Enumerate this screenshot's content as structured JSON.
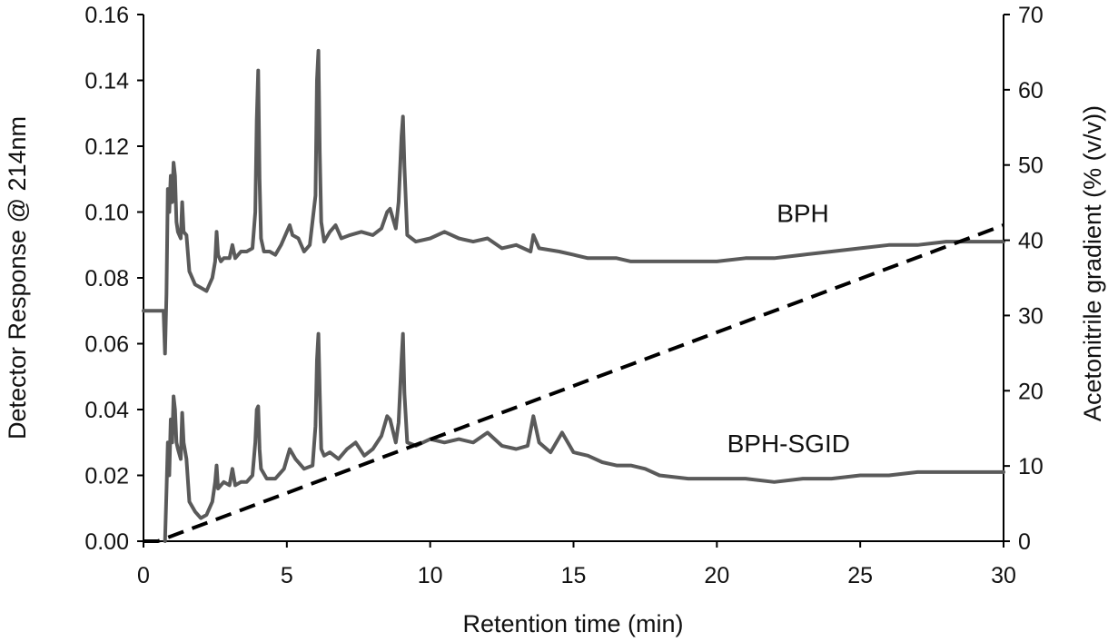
{
  "chart_data": {
    "type": "line",
    "xlabel": "Retention time (min)",
    "ylabel": "Detector Response @ 214nm",
    "y2label": "Acetonitrile gradient (% (v/v))",
    "xlim": [
      0,
      30
    ],
    "ylim": [
      0,
      0.16
    ],
    "y2lim": [
      0,
      70
    ],
    "xticks": [
      "0",
      "5",
      "10",
      "15",
      "20",
      "25",
      "30"
    ],
    "yticks": [
      "0.00",
      "0.02",
      "0.04",
      "0.06",
      "0.08",
      "0.10",
      "0.12",
      "0.14",
      "0.16"
    ],
    "y2ticks": [
      "0",
      "10",
      "20",
      "30",
      "40",
      "50",
      "60",
      "70"
    ],
    "grid": false,
    "legend": "none",
    "colors": {
      "trace": "#5a5a5a",
      "gradient": "#000000"
    },
    "series": [
      {
        "name": "BPH",
        "axis": "left",
        "style": "solid",
        "x": [
          0,
          0.7,
          0.72,
          0.75,
          0.8,
          0.85,
          0.9,
          0.95,
          1.0,
          1.05,
          1.1,
          1.15,
          1.2,
          1.3,
          1.35,
          1.4,
          1.5,
          1.6,
          1.8,
          2.0,
          2.2,
          2.4,
          2.5,
          2.55,
          2.6,
          2.7,
          2.8,
          3.0,
          3.1,
          3.2,
          3.4,
          3.6,
          3.8,
          3.9,
          3.95,
          4.0,
          4.05,
          4.1,
          4.2,
          4.4,
          4.6,
          4.8,
          5.0,
          5.1,
          5.2,
          5.4,
          5.6,
          5.8,
          6.0,
          6.05,
          6.1,
          6.15,
          6.2,
          6.3,
          6.5,
          6.7,
          6.9,
          7.2,
          7.6,
          8.0,
          8.3,
          8.5,
          8.6,
          8.8,
          8.9,
          9.0,
          9.05,
          9.1,
          9.2,
          9.5,
          10.0,
          10.5,
          11.0,
          11.5,
          12.0,
          12.5,
          13.0,
          13.5,
          13.6,
          13.8,
          14.5,
          15.0,
          15.5,
          16.0,
          16.5,
          17.0,
          17.5,
          18.0,
          19.0,
          20.0,
          21.0,
          22.0,
          23.0,
          24.0,
          25.0,
          26.0,
          27.0,
          28.0,
          29.0,
          30.0
        ],
        "values": [
          0.07,
          0.07,
          0.065,
          0.057,
          0.075,
          0.107,
          0.1,
          0.111,
          0.103,
          0.115,
          0.111,
          0.097,
          0.094,
          0.092,
          0.103,
          0.094,
          0.093,
          0.082,
          0.078,
          0.077,
          0.076,
          0.08,
          0.085,
          0.094,
          0.087,
          0.085,
          0.086,
          0.086,
          0.09,
          0.086,
          0.088,
          0.088,
          0.089,
          0.1,
          0.128,
          0.143,
          0.11,
          0.092,
          0.088,
          0.088,
          0.087,
          0.09,
          0.094,
          0.096,
          0.093,
          0.092,
          0.088,
          0.09,
          0.105,
          0.14,
          0.149,
          0.118,
          0.097,
          0.091,
          0.094,
          0.096,
          0.092,
          0.093,
          0.094,
          0.093,
          0.095,
          0.1,
          0.101,
          0.095,
          0.103,
          0.123,
          0.129,
          0.114,
          0.093,
          0.091,
          0.092,
          0.094,
          0.092,
          0.091,
          0.092,
          0.089,
          0.09,
          0.088,
          0.093,
          0.089,
          0.088,
          0.087,
          0.086,
          0.086,
          0.086,
          0.085,
          0.085,
          0.085,
          0.085,
          0.085,
          0.086,
          0.086,
          0.087,
          0.088,
          0.089,
          0.09,
          0.09,
          0.091,
          0.091,
          0.091
        ]
      },
      {
        "name": "BPH-SGID",
        "axis": "left",
        "style": "solid",
        "x": [
          0.75,
          0.8,
          0.85,
          0.9,
          0.95,
          1.0,
          1.05,
          1.1,
          1.15,
          1.2,
          1.3,
          1.35,
          1.4,
          1.5,
          1.6,
          1.8,
          2.0,
          2.2,
          2.4,
          2.5,
          2.55,
          2.6,
          2.8,
          3.0,
          3.1,
          3.2,
          3.4,
          3.6,
          3.8,
          3.9,
          3.95,
          4.0,
          4.05,
          4.1,
          4.3,
          4.6,
          4.9,
          5.1,
          5.3,
          5.6,
          5.9,
          6.0,
          6.05,
          6.1,
          6.15,
          6.2,
          6.3,
          6.5,
          6.8,
          7.1,
          7.4,
          7.7,
          8.0,
          8.3,
          8.5,
          8.6,
          8.8,
          8.9,
          9.0,
          9.05,
          9.1,
          9.2,
          9.5,
          10.0,
          10.5,
          11.0,
          11.5,
          12.0,
          12.5,
          13.0,
          13.4,
          13.6,
          13.8,
          14.2,
          14.6,
          15.0,
          15.5,
          16.0,
          16.5,
          17.0,
          17.5,
          18.0,
          19.0,
          20.0,
          21.0,
          22.0,
          23.0,
          24.0,
          25.0,
          26.0,
          27.0,
          28.0,
          29.0,
          30.0
        ],
        "values": [
          0.0,
          0.015,
          0.03,
          0.02,
          0.037,
          0.03,
          0.044,
          0.04,
          0.03,
          0.028,
          0.025,
          0.039,
          0.03,
          0.025,
          0.012,
          0.009,
          0.007,
          0.008,
          0.012,
          0.018,
          0.023,
          0.016,
          0.018,
          0.017,
          0.022,
          0.017,
          0.018,
          0.018,
          0.02,
          0.03,
          0.04,
          0.041,
          0.028,
          0.022,
          0.019,
          0.019,
          0.022,
          0.028,
          0.025,
          0.022,
          0.023,
          0.035,
          0.055,
          0.063,
          0.045,
          0.028,
          0.026,
          0.027,
          0.025,
          0.028,
          0.03,
          0.026,
          0.028,
          0.032,
          0.038,
          0.037,
          0.03,
          0.036,
          0.055,
          0.063,
          0.045,
          0.03,
          0.029,
          0.031,
          0.03,
          0.031,
          0.03,
          0.033,
          0.029,
          0.028,
          0.029,
          0.038,
          0.03,
          0.027,
          0.033,
          0.027,
          0.026,
          0.024,
          0.023,
          0.023,
          0.022,
          0.02,
          0.019,
          0.019,
          0.019,
          0.018,
          0.019,
          0.019,
          0.02,
          0.02,
          0.021,
          0.021,
          0.021,
          0.021
        ]
      },
      {
        "name": "",
        "axis": "right",
        "style": "dashed",
        "x": [
          0,
          0.5,
          30
        ],
        "values": [
          0,
          0,
          42
        ]
      }
    ],
    "annotations": [
      {
        "text": "BPH",
        "x": 23,
        "y": 0.097
      },
      {
        "text": "BPH-SGID",
        "x": 22.5,
        "y": 0.027
      }
    ]
  }
}
